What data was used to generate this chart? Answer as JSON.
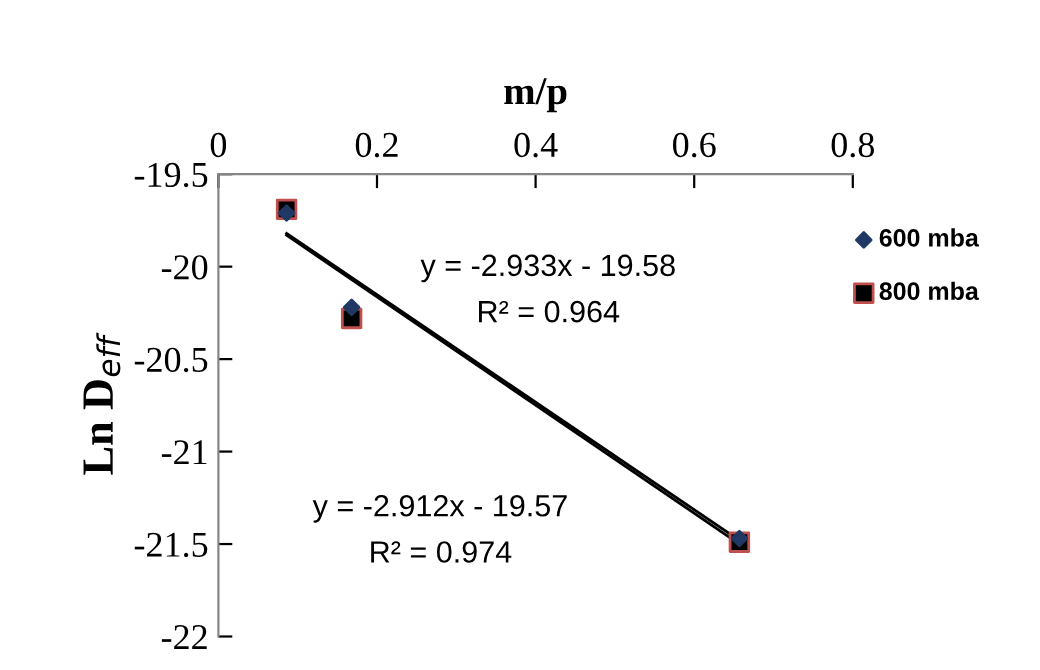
{
  "chart_data": {
    "type": "scatter",
    "xlabel": "m/p",
    "ylabel": "Ln D$_{eff}$",
    "xlim": [
      0,
      0.8
    ],
    "xticks": [
      0,
      0.2,
      0.4,
      0.6,
      0.8
    ],
    "ylim": [
      -22,
      -19.5
    ],
    "yticks": [
      -22,
      -21.5,
      -21,
      -20.5,
      -20,
      -19.5
    ],
    "grid": false,
    "legend": "right",
    "series": [
      {
        "name": "600 mba",
        "marker": "diamond",
        "color": "#1f3864",
        "x": [
          0.086,
          0.168,
          0.657
        ],
        "values": [
          -19.71,
          -20.22,
          -21.47
        ]
      },
      {
        "name": "800 mba",
        "marker": "square",
        "color": "#000000",
        "x": [
          0.086,
          0.168,
          0.657
        ],
        "values": [
          -19.69,
          -20.28,
          -21.49
        ]
      },
      {
        "type": "line",
        "marker": "none",
        "color": "#000000",
        "x": [
          0.086,
          0.657
        ],
        "values": [
          -19.83,
          -21.5
        ]
      },
      {
        "type": "line",
        "marker": "none",
        "color": "#000000",
        "x": [
          0.086,
          0.657
        ],
        "values": [
          -19.82,
          -21.48
        ]
      }
    ],
    "annotations": [
      "y = -2.933x - 19.58",
      "R² = 0.964",
      "y = -2.912x - 19.57",
      "R² = 0.974"
    ]
  }
}
